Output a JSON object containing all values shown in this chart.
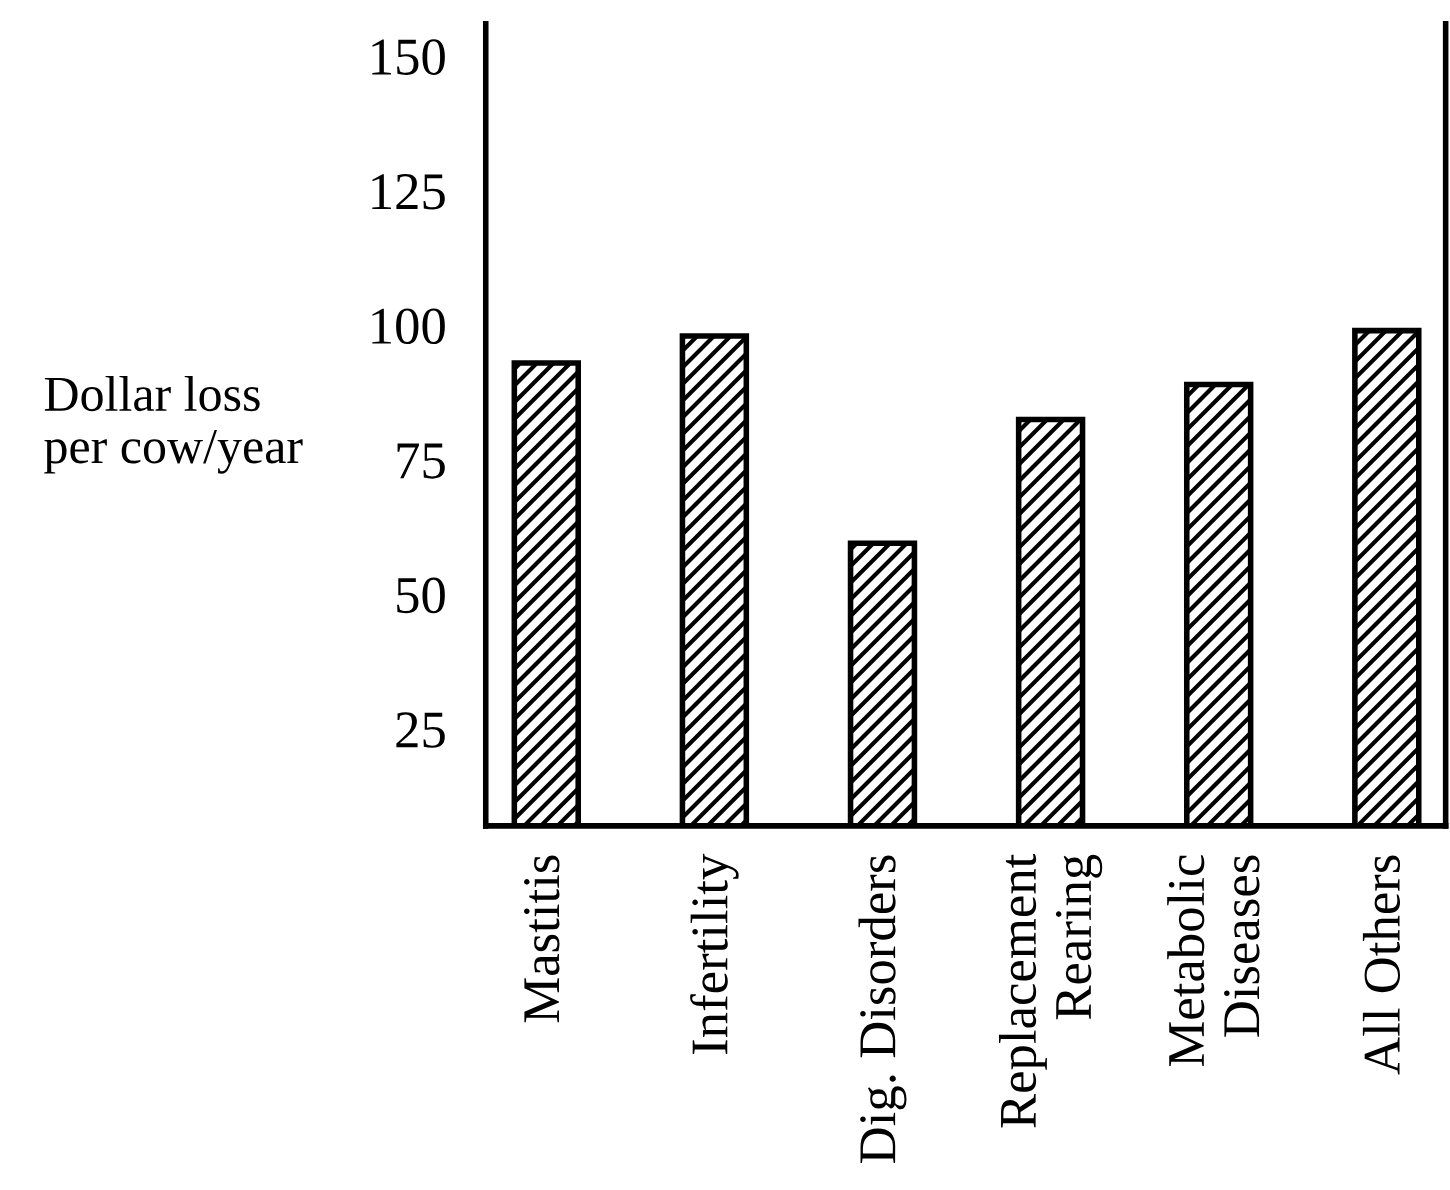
{
  "chart_data": {
    "type": "bar",
    "ylabel": "Dollar loss\nper cow/year",
    "categories": [
      "Mastitis",
      "Infertility",
      "Dig. Disorders",
      "Replacement\nRearing",
      "Metabolic\nDiseases",
      "All Others"
    ],
    "values": [
      93,
      98,
      59.5,
      82.5,
      89,
      99
    ],
    "color": "#000000",
    "ylim": [
      7,
      156
    ],
    "yticks": [
      25,
      50,
      75,
      100,
      125,
      150
    ],
    "grid": false,
    "legend": false
  }
}
